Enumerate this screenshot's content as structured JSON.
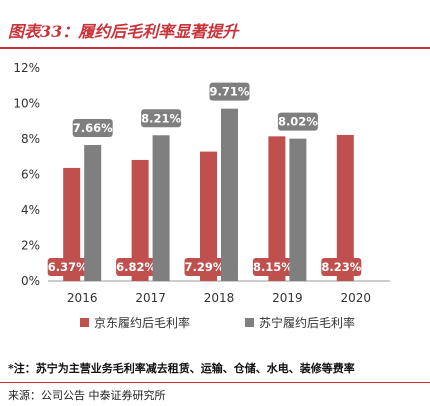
{
  "header": {
    "title": "图表33：履约后毛利率显著提升"
  },
  "chart_data": {
    "type": "bar",
    "categories": [
      "2016",
      "2017",
      "2018",
      "2019",
      "2020"
    ],
    "series": [
      {
        "name": "京东履约后毛利率",
        "color": "#c0504d",
        "values": [
          6.37,
          6.82,
          7.29,
          8.15,
          8.23
        ],
        "labels": [
          "6.37%",
          "6.82%",
          "7.29%",
          "8.15%",
          "8.23%"
        ]
      },
      {
        "name": "苏宁履约后毛利率",
        "color": "#7f7f7f",
        "values": [
          7.66,
          8.21,
          9.71,
          8.02,
          null
        ],
        "labels": [
          "7.66%",
          "8.21%",
          "9.71%",
          "8.02%",
          ""
        ]
      }
    ],
    "ylim": [
      0,
      12
    ],
    "yticks": [
      0,
      2,
      4,
      6,
      8,
      10,
      12
    ],
    "ytick_labels": [
      "0%",
      "2%",
      "4%",
      "6%",
      "8%",
      "10%",
      "12%"
    ],
    "legend_position": "bottom",
    "grid": false
  },
  "footer": {
    "note": "*注：苏宁为主营业务毛利率减去租赁、运输、仓储、水电、装修等费率",
    "source": "来源：公司公告 中泰证券研究所"
  }
}
